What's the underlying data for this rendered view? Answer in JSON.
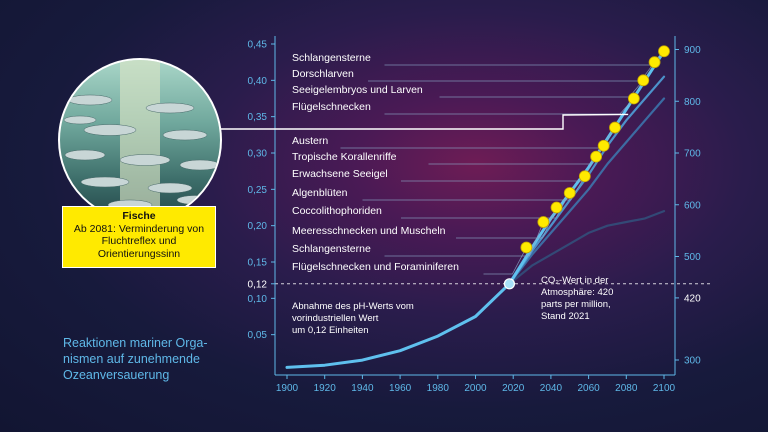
{
  "caption": "Reaktionen mariner Orga-\nnismen auf zunehmende\nOzeanversauerung",
  "fish": {
    "title": "Fische",
    "description": "Ab 2081: Verminderung von Fluchtreflex und Orientierungssinn"
  },
  "colors": {
    "accent": "#5fb8e8",
    "marker": "#ffea00",
    "fish_box": "#ffea00",
    "line": "#ffffff"
  },
  "chart_data": {
    "type": "line",
    "xlabel": "",
    "ylabel": "",
    "xlim": [
      1900,
      2100
    ],
    "x_ticks": [
      1900,
      1920,
      1940,
      1960,
      1980,
      2000,
      2020,
      2040,
      2060,
      2080,
      2100
    ],
    "left_axis": {
      "ylim": [
        0,
        0.45
      ],
      "ticks": [
        "0,05",
        "0,10",
        "0,12",
        "0,15",
        "0,20",
        "0,25",
        "0,30",
        "0,35",
        "0,40",
        "0,45"
      ],
      "tick_values": [
        0.05,
        0.1,
        0.12,
        0.15,
        0.2,
        0.25,
        0.3,
        0.35,
        0.4,
        0.45
      ]
    },
    "right_axis": {
      "ylim": [
        280,
        910
      ],
      "ticks": [
        "300",
        "420",
        "500",
        "600",
        "700",
        "800",
        "900"
      ],
      "tick_values": [
        300,
        420,
        500,
        600,
        700,
        800,
        900
      ]
    },
    "series": [
      {
        "x": [
          1900,
          1920,
          1940,
          1960,
          1980,
          2000,
          2018,
          2030,
          2040,
          2050,
          2060,
          2070,
          2080,
          2090,
          2100
        ],
        "values": [
          0.005,
          0.008,
          0.015,
          0.028,
          0.048,
          0.075,
          0.12,
          0.17,
          0.21,
          0.245,
          0.28,
          0.32,
          0.36,
          0.4,
          0.44
        ]
      },
      {
        "x": [
          2018,
          2030,
          2040,
          2050,
          2060,
          2070,
          2080,
          2090,
          2100
        ],
        "values": [
          0.12,
          0.165,
          0.2,
          0.235,
          0.27,
          0.31,
          0.345,
          0.375,
          0.405
        ]
      },
      {
        "x": [
          2018,
          2030,
          2040,
          2050,
          2060,
          2070,
          2080,
          2090,
          2100
        ],
        "values": [
          0.12,
          0.16,
          0.19,
          0.22,
          0.25,
          0.285,
          0.315,
          0.345,
          0.375
        ]
      },
      {
        "x": [
          2018,
          2030,
          2040,
          2050,
          2060,
          2070,
          2080,
          2090,
          2100
        ],
        "values": [
          0.12,
          0.145,
          0.16,
          0.175,
          0.19,
          0.2,
          0.205,
          0.21,
          0.22
        ]
      }
    ],
    "reference_line": {
      "y": 0.12,
      "style": "dashed"
    },
    "current_point": {
      "x": 2018,
      "y": 0.12
    },
    "annotations": [
      {
        "label": "Schlangensterne",
        "x": 2100,
        "y": 0.44
      },
      {
        "label": "Dorschlarven",
        "x": 2095,
        "y": 0.425
      },
      {
        "label": "Seeigelembryos und Larven",
        "x": 2089,
        "y": 0.4
      },
      {
        "label": "Flügelschnecken",
        "x": 2084,
        "y": 0.375
      },
      {
        "label": "Austern",
        "x": 2074,
        "y": 0.335
      },
      {
        "label": "Tropische Korallenriffe",
        "x": 2068,
        "y": 0.31
      },
      {
        "label": "Erwachsene Seeigel",
        "x": 2064,
        "y": 0.295
      },
      {
        "label": "Algenblüten",
        "x": 2058,
        "y": 0.268
      },
      {
        "label": "Coccolithophoriden",
        "x": 2050,
        "y": 0.245
      },
      {
        "label": "Meeresschnecken und Muscheln",
        "x": 2043,
        "y": 0.225
      },
      {
        "label": "Schlangensterne",
        "x": 2036,
        "y": 0.205
      },
      {
        "label": "Flügelschnecken und Foraminiferen",
        "x": 2027,
        "y": 0.17
      },
      {
        "label": "Fische",
        "x": 2081,
        "y": 0.353,
        "marker": false
      }
    ],
    "text_notes": [
      "Abnahme des pH-Werts vom\nvorindustriellen Wert\num 0,12 Einheiten",
      "CO₂-Wert in der\nAtmosphäre: 420\nparts per million,\nStand 2021"
    ]
  }
}
